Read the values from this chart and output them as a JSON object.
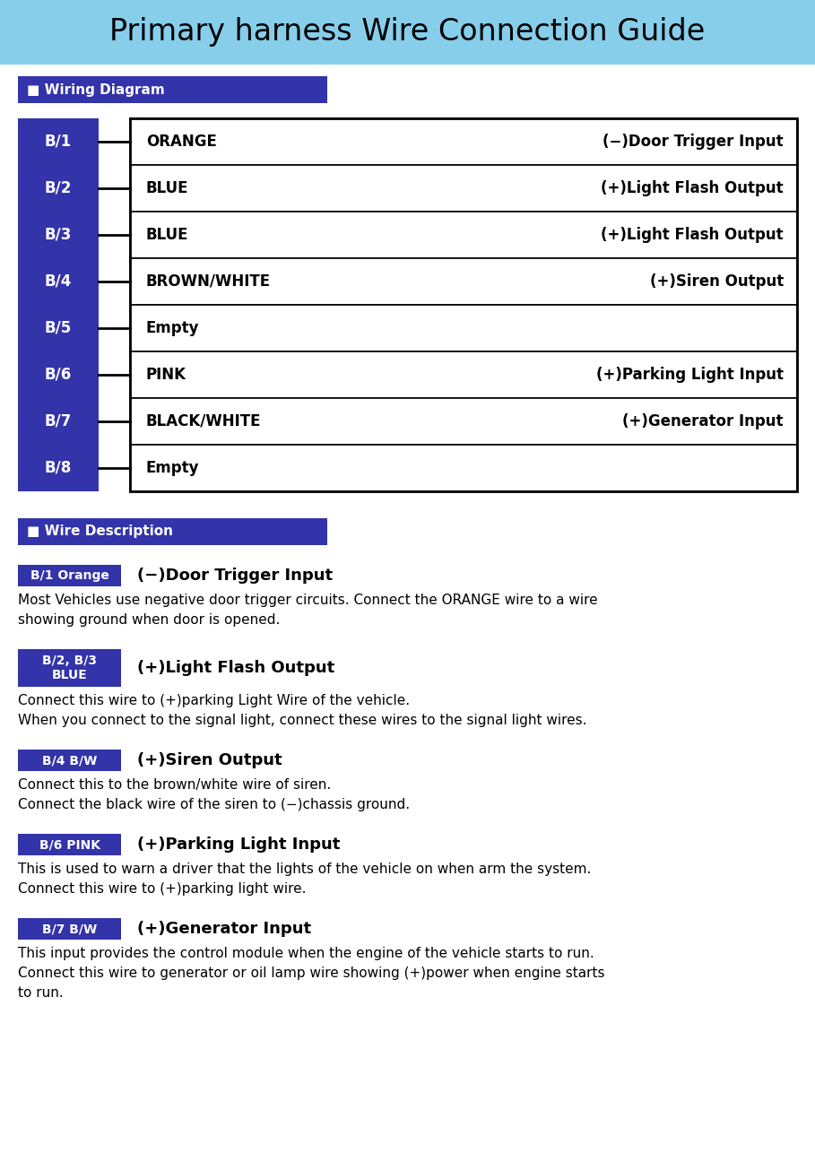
{
  "title": "Primary harness Wire Connection Guide",
  "title_bg": "#87CEEB",
  "title_fontsize": 24,
  "section_bg": "#3333AA",
  "section_text_color": "#FFFFFF",
  "wiring_diagram_label": "■ Wiring Diagram",
  "wire_description_label": "■ Wire Description",
  "table_rows": [
    {
      "pin": "B/1",
      "color": "ORANGE",
      "desc": "(−)Door Trigger Input"
    },
    {
      "pin": "B/2",
      "color": "BLUE",
      "desc": "(+)Light Flash Output"
    },
    {
      "pin": "B/3",
      "color": "BLUE",
      "desc": "(+)Light Flash Output"
    },
    {
      "pin": "B/4",
      "color": "BROWN/WHITE",
      "desc": "(+)Siren Output"
    },
    {
      "pin": "B/5",
      "color": "Empty",
      "desc": ""
    },
    {
      "pin": "B/6",
      "color": "PINK",
      "desc": "(+)Parking Light Input"
    },
    {
      "pin": "B/7",
      "color": "BLACK/WHITE",
      "desc": "(+)Generator Input"
    },
    {
      "pin": "B/8",
      "color": "Empty",
      "desc": ""
    }
  ],
  "descriptions": [
    {
      "tag": "B/1 Orange",
      "tag_lines": 1,
      "title": "(−)Door Trigger Input",
      "body": [
        "Most Vehicles use negative door trigger circuits. Connect the ORANGE wire to a wire",
        "showing ground when door is opened."
      ]
    },
    {
      "tag": "B/2, B/3\nBLUE",
      "tag_lines": 2,
      "title": "(+)Light Flash Output",
      "body": [
        "Connect this wire to (+)parking Light Wire of the vehicle.",
        "When you connect to the signal light, connect these wires to the signal light wires."
      ]
    },
    {
      "tag": "B/4 B/W",
      "tag_lines": 1,
      "title": "(+)Siren Output",
      "body": [
        "Connect this to the brown/white wire of siren.",
        "Connect the black wire of the siren to (−)chassis ground."
      ]
    },
    {
      "tag": "B/6 PINK",
      "tag_lines": 1,
      "title": "(+)Parking Light Input",
      "body": [
        "This is used to warn a driver that the lights of the vehicle on when arm the system.",
        "Connect this wire to (+)parking light wire."
      ]
    },
    {
      "tag": "B/7 B/W",
      "tag_lines": 1,
      "title": "(+)Generator Input",
      "body": [
        "This input provides the control module when the engine of the vehicle starts to run.",
        "Connect this wire to generator or oil lamp wire showing (+)power when engine starts",
        "to run."
      ]
    }
  ]
}
